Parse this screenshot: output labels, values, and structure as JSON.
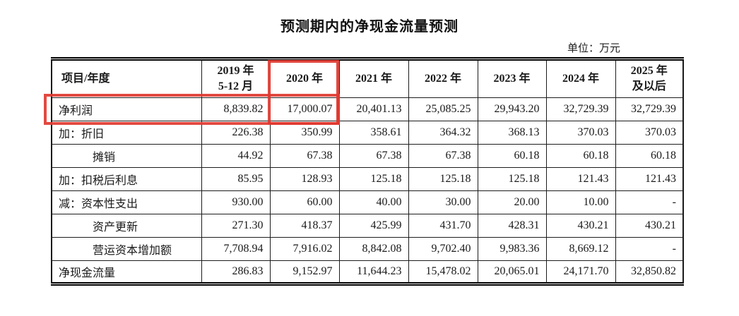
{
  "page": {
    "title": "预测期内的净现金流量预测",
    "unit_label": "单位：万元"
  },
  "table": {
    "corner_header": "项目/年度",
    "year_headers": [
      {
        "lines": [
          "2019 年",
          "5-12 月"
        ]
      },
      {
        "lines": [
          "2020 年"
        ]
      },
      {
        "lines": [
          "2021 年"
        ]
      },
      {
        "lines": [
          "2022 年"
        ]
      },
      {
        "lines": [
          "2023 年"
        ]
      },
      {
        "lines": [
          "2024 年"
        ]
      },
      {
        "lines": [
          "2025 年",
          "及以后"
        ]
      }
    ],
    "rows": [
      {
        "label": "净利润",
        "indent": 0,
        "values": [
          "8,839.82",
          "17,000.07",
          "20,401.13",
          "25,085.25",
          "29,943.20",
          "32,729.39",
          "32,729.39"
        ]
      },
      {
        "label": "加：折旧",
        "indent": 0,
        "values": [
          "226.38",
          "350.99",
          "358.61",
          "364.32",
          "368.13",
          "370.03",
          "370.03"
        ]
      },
      {
        "label": "摊销",
        "indent": 1,
        "values": [
          "44.92",
          "67.38",
          "67.38",
          "67.38",
          "60.18",
          "60.18",
          "60.18"
        ]
      },
      {
        "label": "加：扣税后利息",
        "indent": 0,
        "values": [
          "85.95",
          "128.93",
          "125.18",
          "125.18",
          "125.18",
          "121.43",
          "121.43"
        ]
      },
      {
        "label": "减：资本性支出",
        "indent": 0,
        "values": [
          "930.00",
          "60.00",
          "40.00",
          "30.00",
          "20.00",
          "10.00",
          "-"
        ]
      },
      {
        "label": "资产更新",
        "indent": 1,
        "values": [
          "271.30",
          "418.37",
          "425.99",
          "431.70",
          "428.31",
          "430.21",
          "430.21"
        ]
      },
      {
        "label": "营运资本增加额",
        "indent": 1,
        "values": [
          "7,708.94",
          "7,916.02",
          "8,842.08",
          "9,702.40",
          "9,983.36",
          "8,669.12",
          "-"
        ]
      },
      {
        "label": "净现金流量",
        "indent": 0,
        "values": [
          "286.83",
          "9,152.97",
          "11,644.23",
          "15,478.02",
          "20,065.01",
          "24,171.70",
          "32,850.82"
        ]
      }
    ]
  },
  "annotations": {
    "highlight_color": "#e03a31",
    "boxes": [
      {
        "name": "year-2020-column-box",
        "target": "2020 年 column header and its 净利润 value"
      },
      {
        "name": "net-profit-row-box",
        "target": "净利润 row through the 2020 年 column"
      }
    ]
  }
}
